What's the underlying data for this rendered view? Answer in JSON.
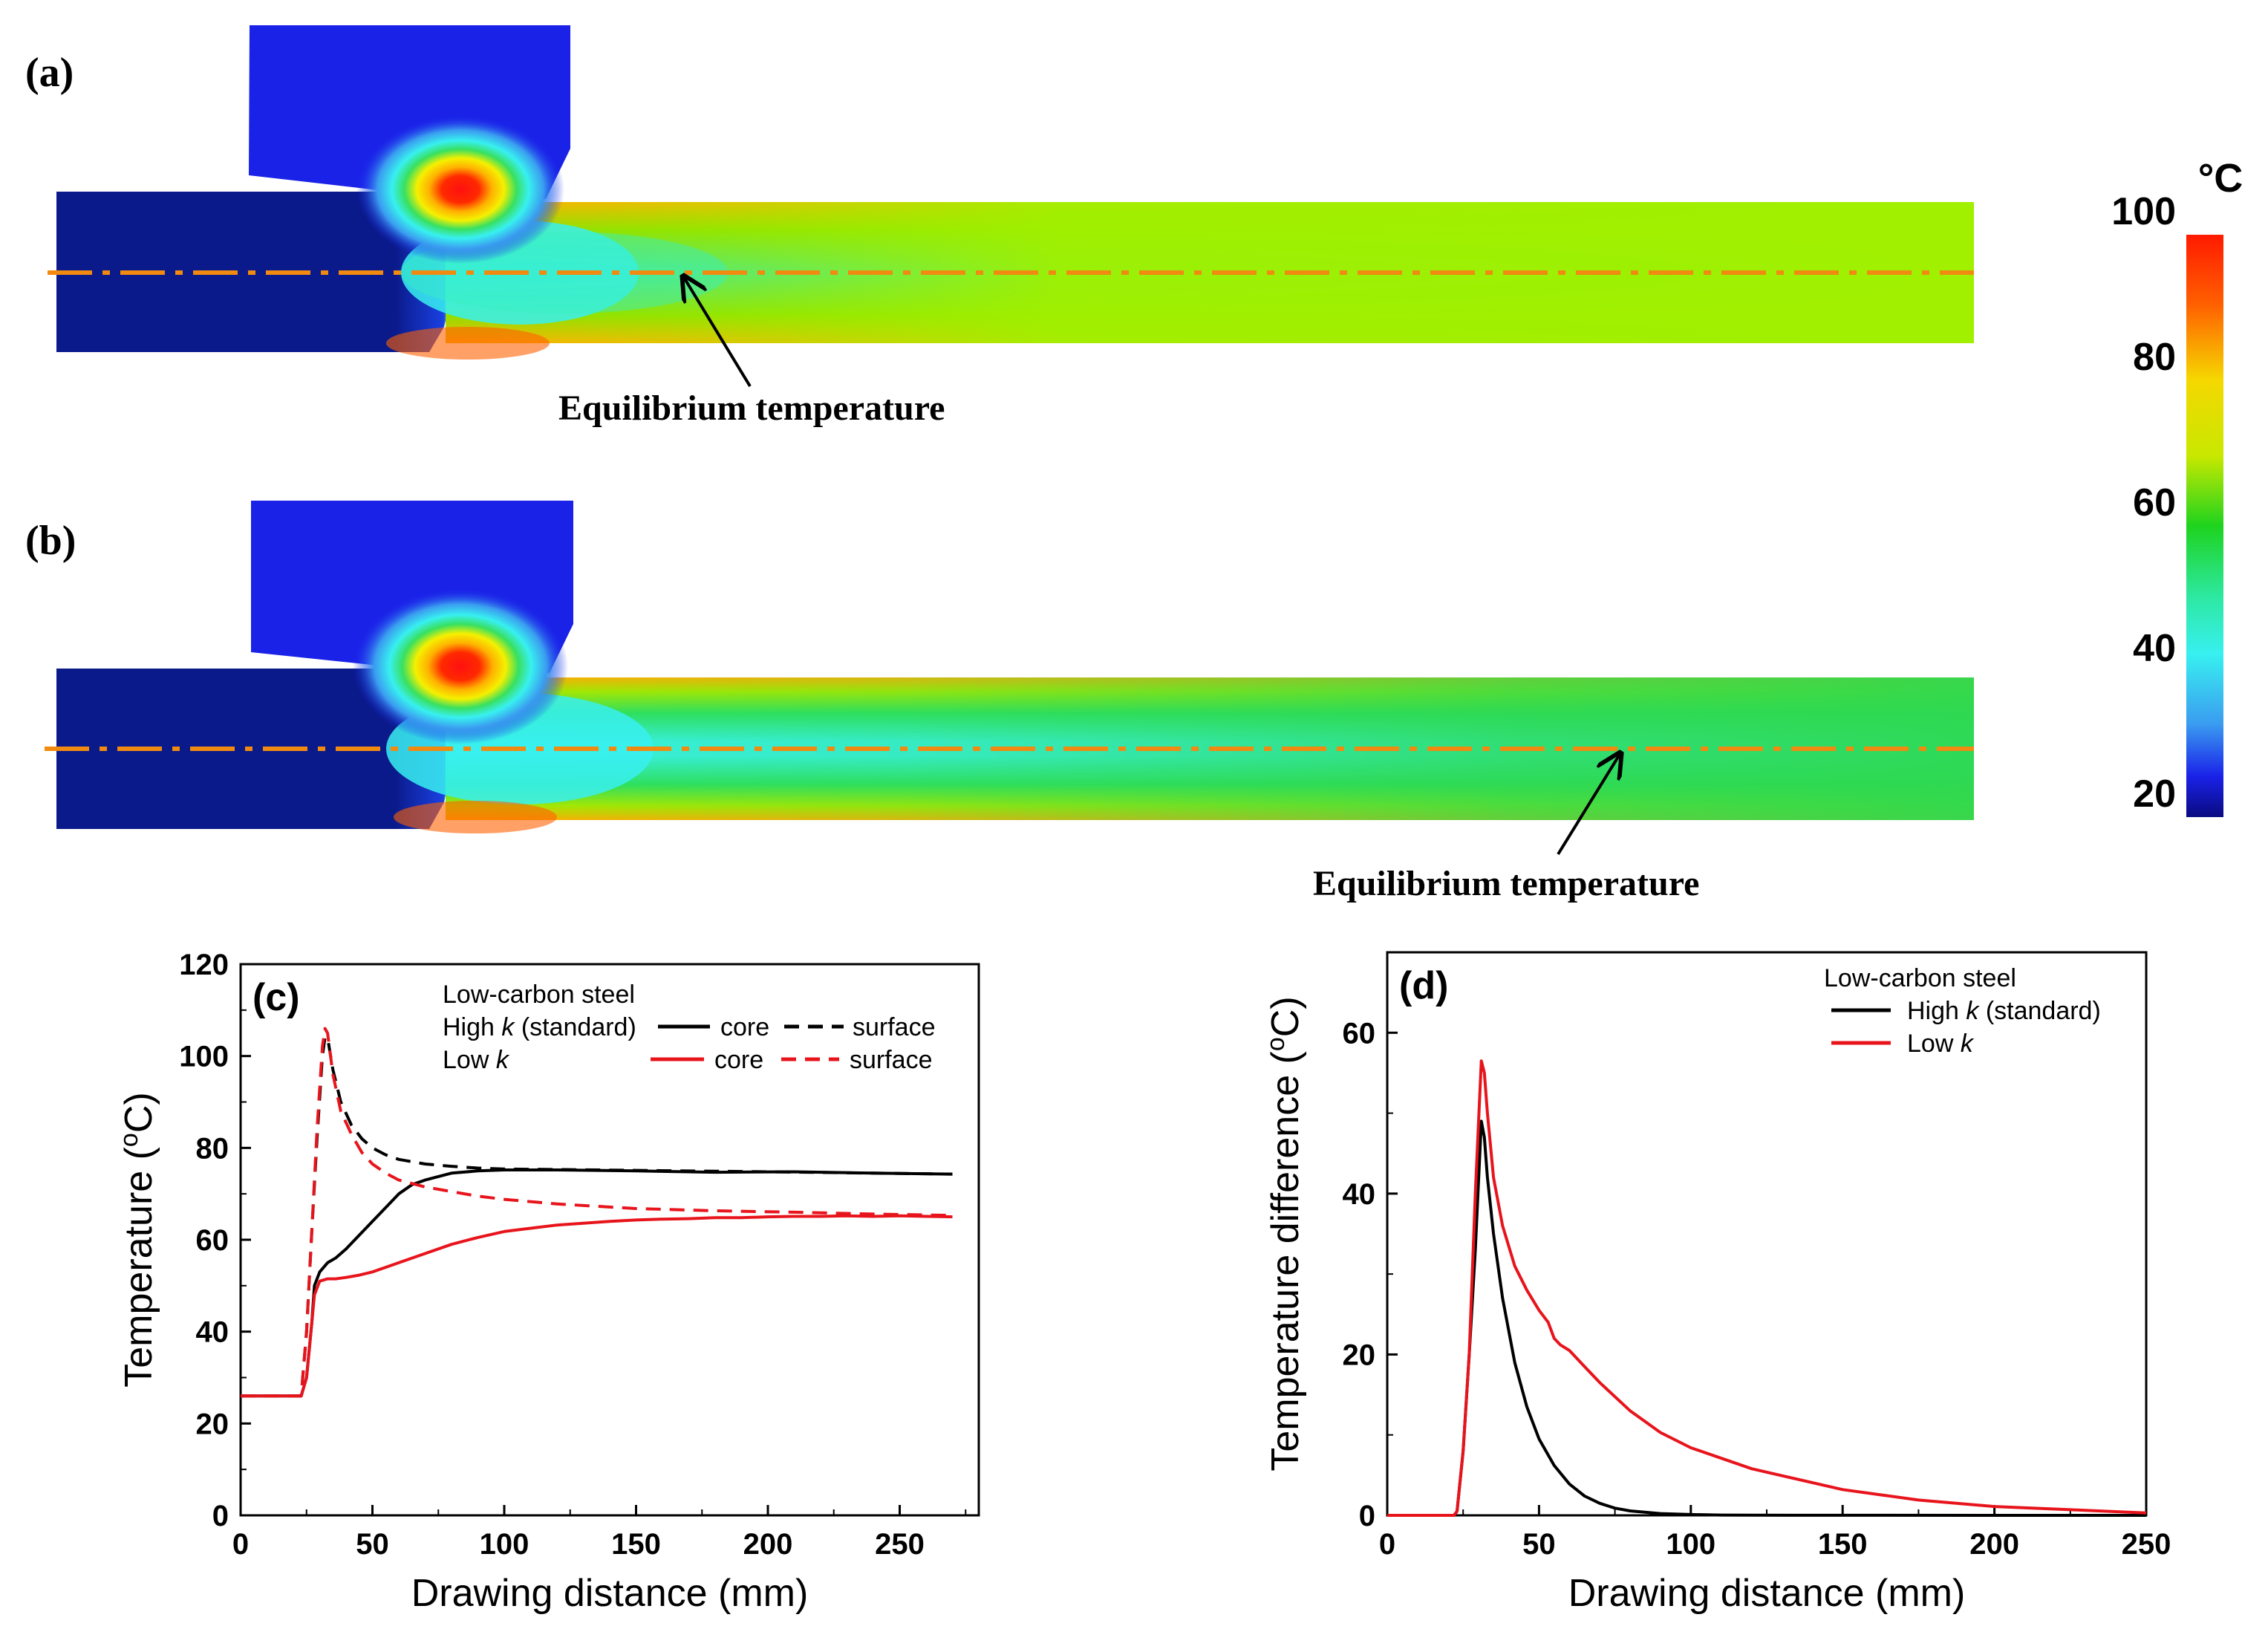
{
  "panels": {
    "a": {
      "label": "(a)",
      "annotation": "Equilibrium temperature"
    },
    "b": {
      "label": "(b)",
      "annotation": "Equilibrium temperature"
    }
  },
  "colorbar": {
    "unit": "°C",
    "ticks": [
      "100",
      "80",
      "60",
      "40",
      "20"
    ],
    "colors": [
      "#ff1a00",
      "#ffb000",
      "#f5f000",
      "#6ee000",
      "#1ed31e",
      "#2de8a0",
      "#38f0f0",
      "#3a9cf0",
      "#1a22e8",
      "#0a0a80"
    ]
  },
  "chart_data": [
    {
      "id": "c",
      "type": "line",
      "panel_label": "(c)",
      "xlabel": "Drawing distance (mm)",
      "ylabel_main": "Temperature (",
      "ylabel_deg": "o",
      "ylabel_unit": "C)",
      "xlim": [
        0,
        280
      ],
      "ylim": [
        0,
        120
      ],
      "xticks": [
        0,
        50,
        100,
        150,
        200,
        250
      ],
      "yticks": [
        0,
        20,
        40,
        60,
        80,
        100,
        120
      ],
      "legend": {
        "title": "Low-carbon steel",
        "row1_label": "High k (standard)",
        "row1_prefix": "High ",
        "row1_k": "k",
        "row1_suffix": " (standard)",
        "row2_label": "Low k",
        "row2_prefix": "Low ",
        "row2_k": "k",
        "core": "core",
        "surface": "surface"
      },
      "series": [
        {
          "name": "High k core",
          "color": "#000000",
          "dash": false,
          "x": [
            0,
            23,
            25,
            27,
            28,
            30,
            33,
            36,
            40,
            45,
            50,
            55,
            60,
            65,
            70,
            80,
            90,
            100,
            120,
            150,
            180,
            210,
            240,
            270
          ],
          "y": [
            26,
            26,
            30,
            42,
            50,
            53,
            55,
            56,
            58,
            61,
            64,
            67,
            70,
            72,
            73,
            74.5,
            75,
            75.2,
            75.2,
            75,
            74.7,
            74.8,
            74.5,
            74.3
          ]
        },
        {
          "name": "High k surface",
          "color": "#000000",
          "dash": true,
          "x": [
            0,
            23,
            25,
            27,
            29,
            31,
            32,
            33,
            35,
            38,
            42,
            46,
            50,
            55,
            60,
            70,
            80,
            90,
            100,
            120,
            150,
            200,
            270
          ],
          "y": [
            26,
            26,
            40,
            62,
            82,
            100,
            104,
            104,
            97,
            90,
            85,
            82,
            80,
            78.5,
            77.5,
            76.5,
            76,
            75.6,
            75.4,
            75.3,
            75.1,
            74.8,
            74.3
          ]
        },
        {
          "name": "Low k core",
          "color": "#e8141c",
          "dash": false,
          "x": [
            0,
            23,
            25,
            27,
            28,
            30,
            33,
            36,
            40,
            45,
            50,
            55,
            60,
            70,
            80,
            90,
            100,
            110,
            120,
            130,
            140,
            150,
            160,
            170,
            180,
            190,
            200,
            210,
            220,
            230,
            240,
            250,
            260,
            270
          ],
          "y": [
            26,
            26,
            30,
            42,
            48,
            51,
            51.5,
            51.5,
            51.8,
            52.3,
            53,
            54,
            55,
            57,
            59,
            60.5,
            61.8,
            62.5,
            63.2,
            63.6,
            64,
            64.3,
            64.5,
            64.6,
            64.8,
            64.8,
            65,
            65.1,
            65.1,
            65.2,
            65.1,
            65.2,
            65.1,
            65
          ]
        },
        {
          "name": "Low k surface",
          "color": "#e8141c",
          "dash": true,
          "x": [
            0,
            23,
            25,
            27,
            29,
            31,
            32,
            33,
            35,
            38,
            42,
            46,
            50,
            55,
            60,
            70,
            80,
            90,
            100,
            120,
            150,
            180,
            210,
            240,
            270
          ],
          "y": [
            26,
            26,
            40,
            62,
            84,
            102,
            106,
            105,
            96,
            88,
            83,
            79,
            76.5,
            74.5,
            73,
            71.5,
            70.5,
            69.5,
            68.8,
            67.8,
            66.8,
            66.3,
            66,
            65.6,
            65.3
          ]
        }
      ]
    },
    {
      "id": "d",
      "type": "line",
      "panel_label": "(d)",
      "xlabel": "Drawing distance (mm)",
      "ylabel_main": "Temperature difference (",
      "ylabel_deg": "o",
      "ylabel_unit": "C)",
      "xlim": [
        0,
        250
      ],
      "ylim": [
        0,
        70
      ],
      "xticks": [
        0,
        50,
        100,
        150,
        200,
        250
      ],
      "yticks": [
        0,
        20,
        40,
        60
      ],
      "legend": {
        "title": "Low-carbon steel",
        "row1_label": "High k (standard)",
        "row1_prefix": "High ",
        "row1_k": "k",
        "row1_suffix": " (standard)",
        "row2_label": "Low k",
        "row2_prefix": "Low ",
        "row2_k": "k"
      },
      "series": [
        {
          "name": "High k (standard)",
          "color": "#000000",
          "x": [
            0,
            22,
            23,
            25,
            27,
            29,
            31,
            32,
            33,
            35,
            38,
            42,
            46,
            50,
            55,
            60,
            65,
            70,
            75,
            80,
            90,
            100,
            110,
            120,
            150,
            200,
            250
          ],
          "y": [
            0,
            0,
            0.5,
            8,
            20,
            33,
            49,
            47,
            42,
            35,
            27,
            19,
            13.5,
            9.5,
            6.2,
            3.9,
            2.4,
            1.5,
            0.9,
            0.55,
            0.22,
            0.1,
            0.04,
            0.02,
            0.01,
            0,
            0
          ]
        },
        {
          "name": "Low k",
          "color": "#e8141c",
          "x": [
            0,
            22,
            23,
            25,
            27,
            29,
            31,
            32,
            33,
            35,
            38,
            42,
            46,
            50,
            53,
            55,
            57,
            60,
            65,
            70,
            80,
            90,
            100,
            120,
            150,
            175,
            200,
            225,
            250
          ],
          "y": [
            0,
            0,
            0.5,
            8,
            20,
            40,
            56.5,
            55,
            50,
            42,
            36,
            31,
            28,
            25.5,
            24,
            22,
            21.2,
            20.5,
            18.5,
            16.5,
            13,
            10.3,
            8.4,
            5.8,
            3.2,
            1.9,
            1.1,
            0.7,
            0.3
          ]
        }
      ]
    }
  ]
}
